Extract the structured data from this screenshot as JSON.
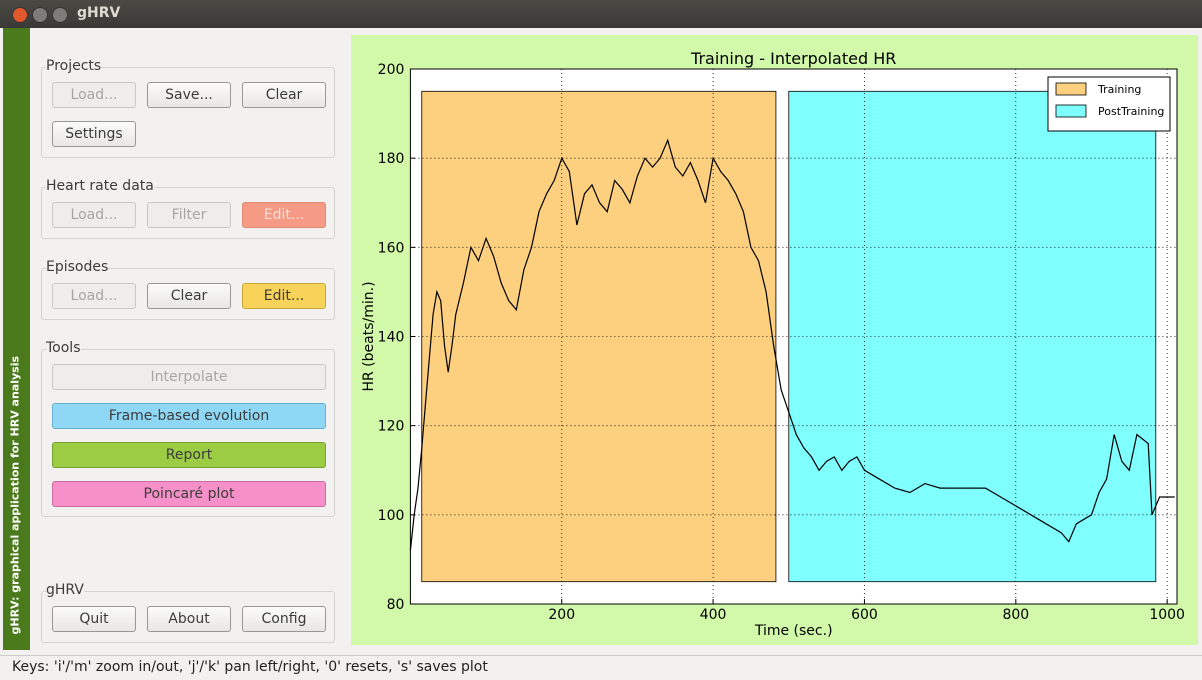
{
  "window": {
    "title": "gHRV"
  },
  "sidebar_label": "gHRV: graphical application for HRV analysis",
  "groups": [
    {
      "title": "Projects",
      "buttons": [
        "Load...",
        "Save...",
        "Clear",
        "Settings"
      ]
    },
    {
      "title": "Heart rate data",
      "buttons": [
        "Load...",
        "Filter",
        "Edit..."
      ]
    },
    {
      "title": "Episodes",
      "buttons": [
        "Load...",
        "Clear",
        "Edit..."
      ]
    },
    {
      "title": "Tools",
      "buttons": [
        "Interpolate",
        "Frame-based evolution",
        "Report",
        "Poincaré plot"
      ]
    },
    {
      "title": "gHRV",
      "buttons": [
        "Quit",
        "About",
        "Config"
      ]
    }
  ],
  "status_bar": "Keys: 'i'/'m' zoom in/out, 'j'/'k' pan left/right, '0' resets, 's' saves plot",
  "chart_data": {
    "type": "line",
    "title": "Training - Interpolated HR",
    "x_label": "Time (sec.)",
    "y_label": "HR (beats/min.)",
    "xlim": [
      0,
      1013
    ],
    "ylim": [
      80,
      200
    ],
    "xticks": [
      200,
      400,
      600,
      800,
      1000
    ],
    "yticks": [
      80,
      100,
      120,
      140,
      160,
      180,
      200
    ],
    "grid": true,
    "legend": "upper right",
    "line_color": "#000000",
    "episodes": [
      {
        "name": "Training",
        "color": "#fdd080",
        "start": 15,
        "end": 483
      },
      {
        "name": "PostTraining",
        "color": "#80ffff",
        "start": 500,
        "end": 985
      }
    ],
    "episode_ylim": [
      85,
      195
    ],
    "x": [
      0,
      5,
      10,
      15,
      20,
      25,
      30,
      35,
      40,
      45,
      50,
      55,
      60,
      70,
      80,
      90,
      100,
      110,
      120,
      130,
      140,
      150,
      160,
      170,
      180,
      190,
      200,
      210,
      220,
      230,
      240,
      250,
      260,
      270,
      280,
      290,
      300,
      310,
      320,
      330,
      340,
      350,
      360,
      370,
      380,
      390,
      400,
      410,
      420,
      430,
      440,
      450,
      460,
      470,
      480,
      490,
      500,
      510,
      520,
      530,
      540,
      550,
      560,
      570,
      580,
      590,
      600,
      620,
      640,
      660,
      680,
      700,
      720,
      740,
      760,
      780,
      800,
      820,
      840,
      860,
      870,
      880,
      900,
      910,
      920,
      930,
      940,
      950,
      960,
      975,
      980,
      985,
      990,
      1000,
      1010
    ],
    "values": [
      92,
      100,
      106,
      115,
      125,
      135,
      145,
      150,
      148,
      138,
      132,
      138,
      145,
      152,
      160,
      157,
      162,
      158,
      152,
      148,
      146,
      155,
      160,
      168,
      172,
      175,
      180,
      177,
      165,
      172,
      174,
      170,
      168,
      175,
      173,
      170,
      176,
      180,
      178,
      180,
      184,
      178,
      176,
      179,
      175,
      170,
      180,
      177,
      175,
      172,
      168,
      160,
      157,
      150,
      138,
      128,
      123,
      118,
      115,
      113,
      110,
      112,
      113,
      110,
      112,
      113,
      110,
      108,
      106,
      105,
      107,
      106,
      106,
      106,
      106,
      104,
      102,
      100,
      98,
      96,
      94,
      98,
      100,
      105,
      108,
      118,
      112,
      110,
      118,
      116,
      100,
      102,
      104,
      104,
      104
    ]
  }
}
